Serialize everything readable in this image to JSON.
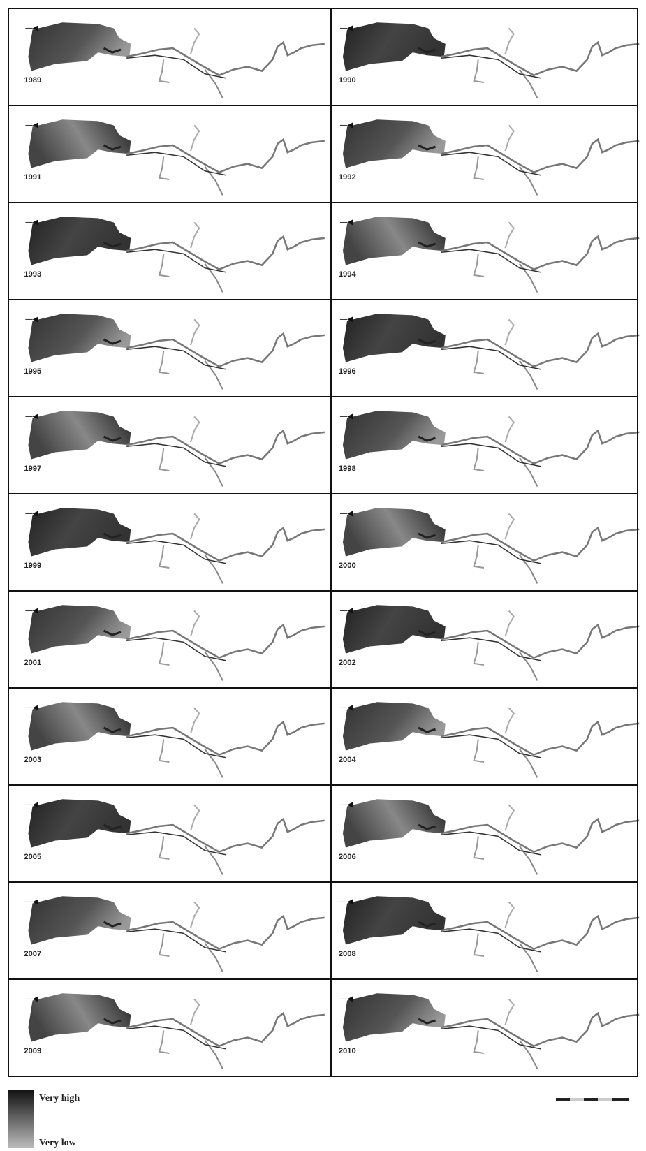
{
  "panels": [
    "1989",
    "1990",
    "1991",
    "1992",
    "1993",
    "1994",
    "1995",
    "1996",
    "1997",
    "1998",
    "1999",
    "2000",
    "2001",
    "2002",
    "2003",
    "2004",
    "2005",
    "2006",
    "2007",
    "2008",
    "2009",
    "2010"
  ],
  "legend": {
    "high": "Very high",
    "low": "Very low"
  }
}
